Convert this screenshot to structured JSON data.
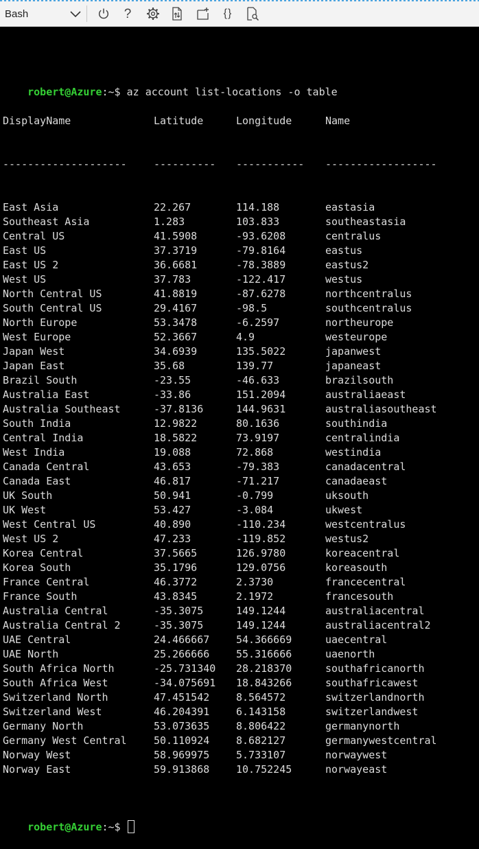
{
  "toolbar": {
    "shell_label": "Bash",
    "icons": [
      "chevron-down-icon",
      "power-icon",
      "help-icon",
      "gear-icon",
      "upload-download-icon",
      "new-session-icon",
      "braces-icon",
      "web-preview-icon"
    ],
    "help_glyph": "?",
    "braces_glyph": "{}"
  },
  "terminal": {
    "prompt_user": "robert@Azure",
    "prompt_path": ":~$ ",
    "command": "az account list-locations -o table",
    "headers": [
      "DisplayName",
      "Latitude",
      "Longitude",
      "Name"
    ],
    "separators": [
      "--------------------",
      "----------",
      "-----------",
      "------------------"
    ],
    "rows": [
      [
        "East Asia",
        "22.267",
        "114.188",
        "eastasia"
      ],
      [
        "Southeast Asia",
        "1.283",
        "103.833",
        "southeastasia"
      ],
      [
        "Central US",
        "41.5908",
        "-93.6208",
        "centralus"
      ],
      [
        "East US",
        "37.3719",
        "-79.8164",
        "eastus"
      ],
      [
        "East US 2",
        "36.6681",
        "-78.3889",
        "eastus2"
      ],
      [
        "West US",
        "37.783",
        "-122.417",
        "westus"
      ],
      [
        "North Central US",
        "41.8819",
        "-87.6278",
        "northcentralus"
      ],
      [
        "South Central US",
        "29.4167",
        "-98.5",
        "southcentralus"
      ],
      [
        "North Europe",
        "53.3478",
        "-6.2597",
        "northeurope"
      ],
      [
        "West Europe",
        "52.3667",
        "4.9",
        "westeurope"
      ],
      [
        "Japan West",
        "34.6939",
        "135.5022",
        "japanwest"
      ],
      [
        "Japan East",
        "35.68",
        "139.77",
        "japaneast"
      ],
      [
        "Brazil South",
        "-23.55",
        "-46.633",
        "brazilsouth"
      ],
      [
        "Australia East",
        "-33.86",
        "151.2094",
        "australiaeast"
      ],
      [
        "Australia Southeast",
        "-37.8136",
        "144.9631",
        "australiasoutheast"
      ],
      [
        "South India",
        "12.9822",
        "80.1636",
        "southindia"
      ],
      [
        "Central India",
        "18.5822",
        "73.9197",
        "centralindia"
      ],
      [
        "West India",
        "19.088",
        "72.868",
        "westindia"
      ],
      [
        "Canada Central",
        "43.653",
        "-79.383",
        "canadacentral"
      ],
      [
        "Canada East",
        "46.817",
        "-71.217",
        "canadaeast"
      ],
      [
        "UK South",
        "50.941",
        "-0.799",
        "uksouth"
      ],
      [
        "UK West",
        "53.427",
        "-3.084",
        "ukwest"
      ],
      [
        "West Central US",
        "40.890",
        "-110.234",
        "westcentralus"
      ],
      [
        "West US 2",
        "47.233",
        "-119.852",
        "westus2"
      ],
      [
        "Korea Central",
        "37.5665",
        "126.9780",
        "koreacentral"
      ],
      [
        "Korea South",
        "35.1796",
        "129.0756",
        "koreasouth"
      ],
      [
        "France Central",
        "46.3772",
        "2.3730",
        "francecentral"
      ],
      [
        "France South",
        "43.8345",
        "2.1972",
        "francesouth"
      ],
      [
        "Australia Central",
        "-35.3075",
        "149.1244",
        "australiacentral"
      ],
      [
        "Australia Central 2",
        "-35.3075",
        "149.1244",
        "australiacentral2"
      ],
      [
        "UAE Central",
        "24.466667",
        "54.366669",
        "uaecentral"
      ],
      [
        "UAE North",
        "25.266666",
        "55.316666",
        "uaenorth"
      ],
      [
        "South Africa North",
        "-25.731340",
        "28.218370",
        "southafricanorth"
      ],
      [
        "South Africa West",
        "-34.075691",
        "18.843266",
        "southafricawest"
      ],
      [
        "Switzerland North",
        "47.451542",
        "8.564572",
        "switzerlandnorth"
      ],
      [
        "Switzerland West",
        "46.204391",
        "6.143158",
        "switzerlandwest"
      ],
      [
        "Germany North",
        "53.073635",
        "8.806422",
        "germanynorth"
      ],
      [
        "Germany West Central",
        "50.110924",
        "8.682127",
        "germanywestcentral"
      ],
      [
        "Norway West",
        "58.969975",
        "5.733107",
        "norwaywest"
      ],
      [
        "Norway East",
        "59.913868",
        "10.752245",
        "norwayeast"
      ]
    ],
    "colors": {
      "background": "#000000",
      "text": "#dcdcdc",
      "prompt_user": "#35d035"
    }
  }
}
